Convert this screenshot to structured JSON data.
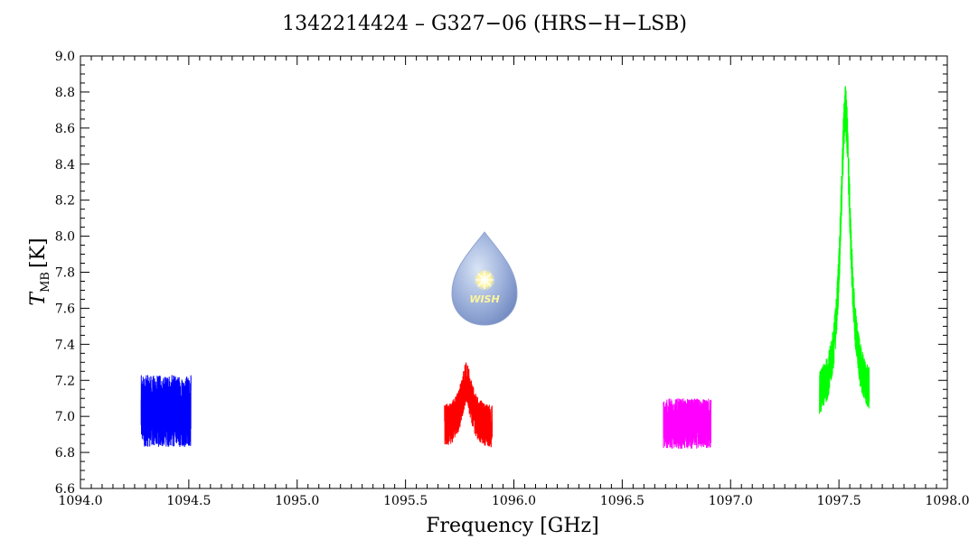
{
  "chart_data": {
    "type": "line",
    "title": "1342214424 – G327−06 (HRS−H−LSB)",
    "xlabel": "Frequency [GHz]",
    "ylabel_main": "T",
    "ylabel_sub": "MB",
    "ylabel_unit": "[K]",
    "xlim": [
      1094.0,
      1098.0
    ],
    "ylim": [
      6.6,
      9.0
    ],
    "x_ticks": [
      "1094.0",
      "1094.5",
      "1095.0",
      "1095.5",
      "1096.0",
      "1096.5",
      "1097.0",
      "1097.5",
      "1098.0"
    ],
    "x_tick_values": [
      1094.0,
      1094.5,
      1095.0,
      1095.5,
      1096.0,
      1096.5,
      1097.0,
      1097.5,
      1098.0
    ],
    "y_ticks": [
      "6.6",
      "6.8",
      "7.0",
      "7.2",
      "7.4",
      "7.6",
      "7.8",
      "8.0",
      "8.2",
      "8.4",
      "8.6",
      "8.8",
      "9.0"
    ],
    "y_tick_values": [
      6.6,
      6.8,
      7.0,
      7.2,
      7.4,
      7.6,
      7.8,
      8.0,
      8.2,
      8.4,
      8.6,
      8.8,
      9.0
    ],
    "grid": false,
    "logo_text": "WISH",
    "series": [
      {
        "color": "#0000ff",
        "x_range": [
          1094.28,
          1094.51
        ],
        "baseline": 7.03,
        "noise_amplitude": 0.2,
        "y_min": 6.66,
        "y_max": 7.41
      },
      {
        "color": "#ff0000",
        "x_range": [
          1095.68,
          1095.9
        ],
        "baseline": 6.93,
        "noise_amplitude": 0.12,
        "y_min": 6.73,
        "y_max": 7.38,
        "peak": {
          "x": 1095.78,
          "y": 7.18
        }
      },
      {
        "color": "#ff00ff",
        "x_range": [
          1096.69,
          1096.91
        ],
        "baseline": 6.96,
        "noise_amplitude": 0.14,
        "y_min": 6.69,
        "y_max": 7.22
      },
      {
        "color": "#00ff00",
        "x_range": [
          1097.41,
          1097.64
        ],
        "baseline": 7.05,
        "noise_amplitude": 0.12,
        "y_min": 6.8,
        "y_max": 8.92,
        "peak": {
          "x": 1097.53,
          "y": 8.7
        }
      }
    ]
  }
}
